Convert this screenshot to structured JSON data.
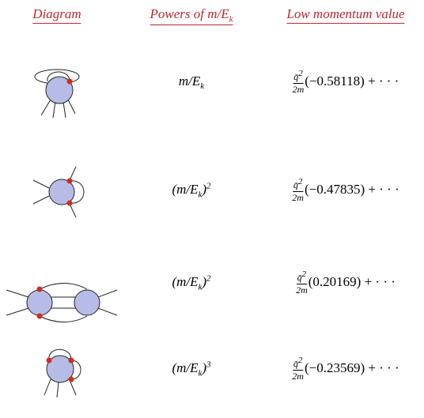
{
  "header": {
    "diagram": "Diagram",
    "powers": {
      "main": "Powers of m/E",
      "sub": "k"
    },
    "value": "Low momentum value"
  },
  "rows": [
    {
      "power": {
        "main": "m/E",
        "sub": "k"
      },
      "value": {
        "numerator": "q̄",
        "numerator_sup": "2",
        "denominator": "2m",
        "coefficient": "(−0.58118)",
        "tail": "+ · · ·"
      }
    },
    {
      "power": {
        "main": "(m/E",
        "sub": "k",
        "close": ")",
        "sup": "2"
      },
      "value": {
        "numerator": "q̄",
        "numerator_sup": "2",
        "denominator": "2m",
        "coefficient": "(−0.47835)",
        "tail": "+ · · ·"
      }
    },
    {
      "power": {
        "main": "(m/E",
        "sub": "k",
        "close": ")",
        "sup": "2"
      },
      "value": {
        "numerator": "q̄",
        "numerator_sup": "2",
        "denominator": "2m",
        "coefficient": "(0.20169)",
        "tail": "+ · · ·"
      }
    },
    {
      "power": {
        "main": "(m/E",
        "sub": "k",
        "close": ")",
        "sup": "3"
      },
      "value": {
        "numerator": "q̄",
        "numerator_sup": "2",
        "denominator": "2m",
        "coefficient": "(−0.23569)",
        "tail": "+ · · ·"
      }
    }
  ]
}
